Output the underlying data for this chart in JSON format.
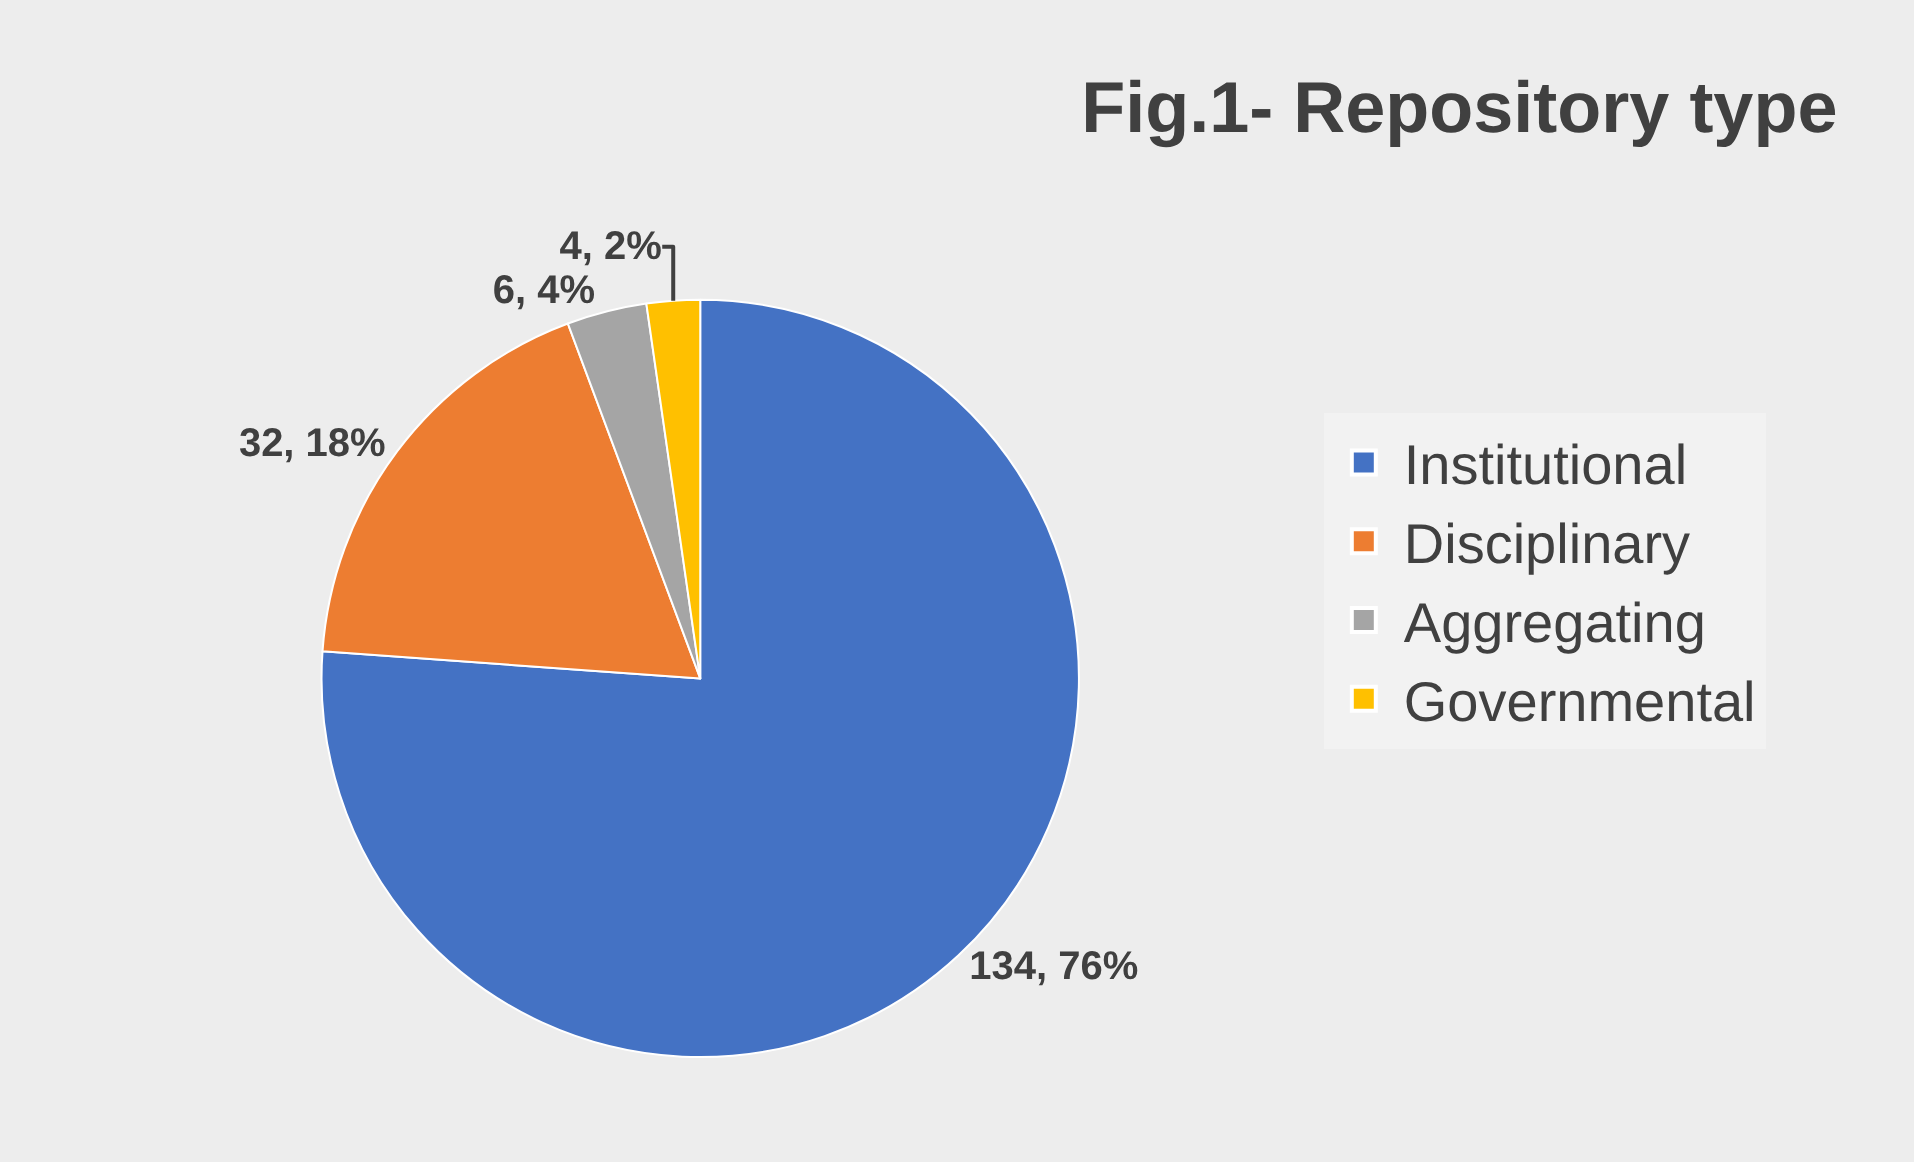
{
  "chart_data": {
    "type": "pie",
    "title": "Fig.1- Repository type",
    "categories": [
      "Institutional",
      "Disciplinary",
      "Aggregating",
      "Governmental"
    ],
    "values": [
      134,
      32,
      6,
      4
    ],
    "value_labels": [
      "134, 76%",
      "32, 18%",
      "6, 4%",
      "4, 2%"
    ],
    "colors": [
      "#4472c4",
      "#ed7d31",
      "#a5a5a5",
      "#ffc000"
    ],
    "legend": "right"
  }
}
